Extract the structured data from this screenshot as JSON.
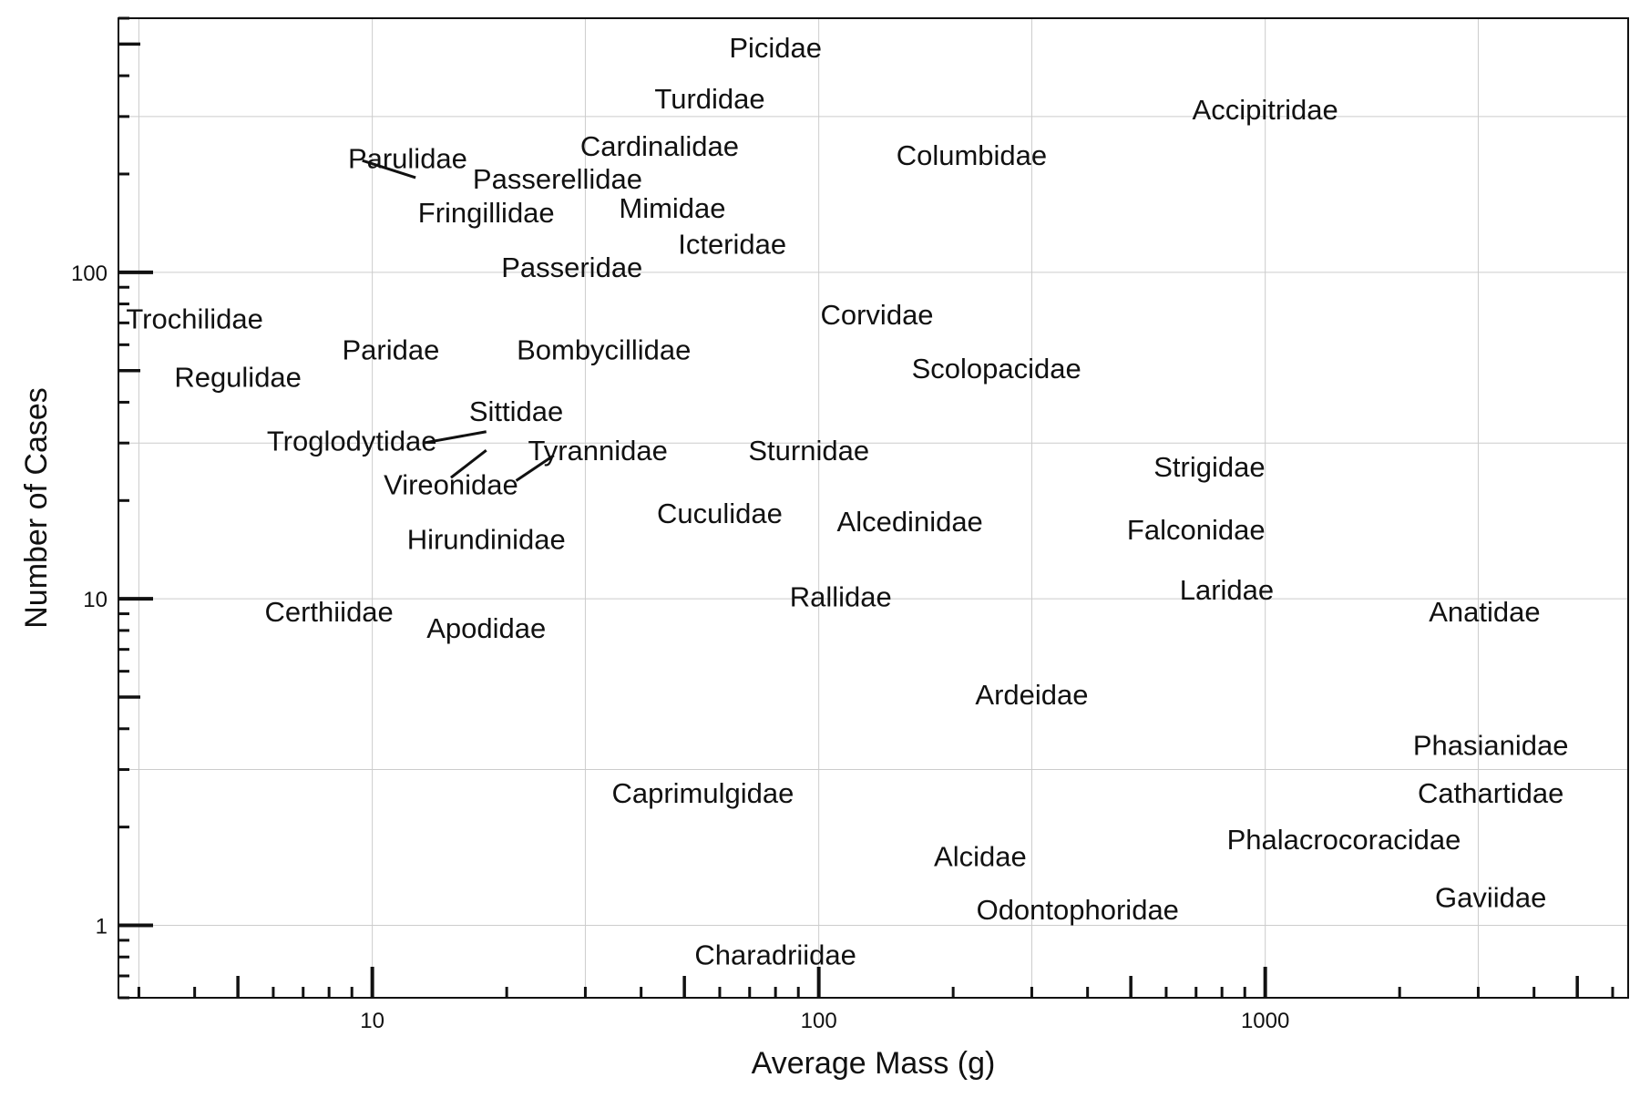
{
  "chart_data": {
    "type": "scatter",
    "xlabel": "Average Mass (g)",
    "ylabel": "Number of Cases",
    "x_scale": "log",
    "y_scale": "log",
    "xlim": [
      2.7,
      6500
    ],
    "ylim": [
      0.6,
      600
    ],
    "x_tick_labels": [
      "10",
      "100",
      "1000"
    ],
    "y_tick_labels": [
      "1",
      "10",
      "100"
    ],
    "grid": true,
    "legend": "none",
    "points": [
      {
        "label": "Picidae",
        "x": 80,
        "y": 480
      },
      {
        "label": "Turdidae",
        "x": 57,
        "y": 335
      },
      {
        "label": "Accipitridae",
        "x": 1000,
        "y": 310
      },
      {
        "label": "Cardinalidae",
        "x": 44,
        "y": 240
      },
      {
        "label": "Columbidae",
        "x": 220,
        "y": 225
      },
      {
        "label": "Parulidae",
        "x": 12,
        "y": 220
      },
      {
        "label": "Passerellidae",
        "x": 26,
        "y": 190
      },
      {
        "label": "Fringillidae",
        "x": 18,
        "y": 150
      },
      {
        "label": "Mimidae",
        "x": 47,
        "y": 155
      },
      {
        "label": "Icteridae",
        "x": 64,
        "y": 120
      },
      {
        "label": "Passeridae",
        "x": 28,
        "y": 102
      },
      {
        "label": "Trochilidae",
        "x": 4,
        "y": 71
      },
      {
        "label": "Corvidae",
        "x": 135,
        "y": 73
      },
      {
        "label": "Paridae",
        "x": 11,
        "y": 57
      },
      {
        "label": "Bombycillidae",
        "x": 33,
        "y": 57
      },
      {
        "label": "Scolopacidae",
        "x": 250,
        "y": 50
      },
      {
        "label": "Regulidae",
        "x": 5,
        "y": 47
      },
      {
        "label": "Sittidae",
        "x": 21,
        "y": 37
      },
      {
        "label": "Troglodytidae",
        "x": 9,
        "y": 30
      },
      {
        "label": "Tyrannidae",
        "x": 32,
        "y": 28
      },
      {
        "label": "Sturnidae",
        "x": 95,
        "y": 28
      },
      {
        "label": "Strigidae",
        "x": 750,
        "y": 25
      },
      {
        "label": "Vireonidae",
        "x": 15,
        "y": 22
      },
      {
        "label": "Cuculidae",
        "x": 60,
        "y": 18
      },
      {
        "label": "Alcedinidae",
        "x": 160,
        "y": 17
      },
      {
        "label": "Falconidae",
        "x": 700,
        "y": 16
      },
      {
        "label": "Hirundinidae",
        "x": 18,
        "y": 15
      },
      {
        "label": "Rallidae",
        "x": 112,
        "y": 10
      },
      {
        "label": "Laridae",
        "x": 820,
        "y": 10.5
      },
      {
        "label": "Certhiidae",
        "x": 8,
        "y": 9
      },
      {
        "label": "Anatidae",
        "x": 3100,
        "y": 9
      },
      {
        "label": "Apodidae",
        "x": 18,
        "y": 8
      },
      {
        "label": "Ardeidae",
        "x": 300,
        "y": 5
      },
      {
        "label": "Phasianidae",
        "x": 3200,
        "y": 3.5
      },
      {
        "label": "Caprimulgidae",
        "x": 55,
        "y": 2.5
      },
      {
        "label": "Cathartidae",
        "x": 3200,
        "y": 2.5
      },
      {
        "label": "Phalacrocoracidae",
        "x": 1500,
        "y": 1.8
      },
      {
        "label": "Alcidae",
        "x": 230,
        "y": 1.6
      },
      {
        "label": "Gaviidae",
        "x": 3200,
        "y": 1.2
      },
      {
        "label": "Odontophoridae",
        "x": 380,
        "y": 1.1
      },
      {
        "label": "Charadriidae",
        "x": 80,
        "y": 0.8
      }
    ],
    "leader_lines": [
      {
        "x": [
          9.5,
          12.5
        ],
        "y": [
          220,
          195
        ]
      },
      {
        "x": [
          13,
          18
        ],
        "y": [
          30,
          32.5
        ]
      },
      {
        "x": [
          15,
          18
        ],
        "y": [
          23.5,
          28.5
        ]
      },
      {
        "x": [
          21,
          25.5
        ],
        "y": [
          23,
          27.5
        ]
      }
    ],
    "colors": {
      "text": "#111111",
      "axis": "#111111",
      "grid": "#cccccc",
      "background": "#ffffff"
    }
  }
}
